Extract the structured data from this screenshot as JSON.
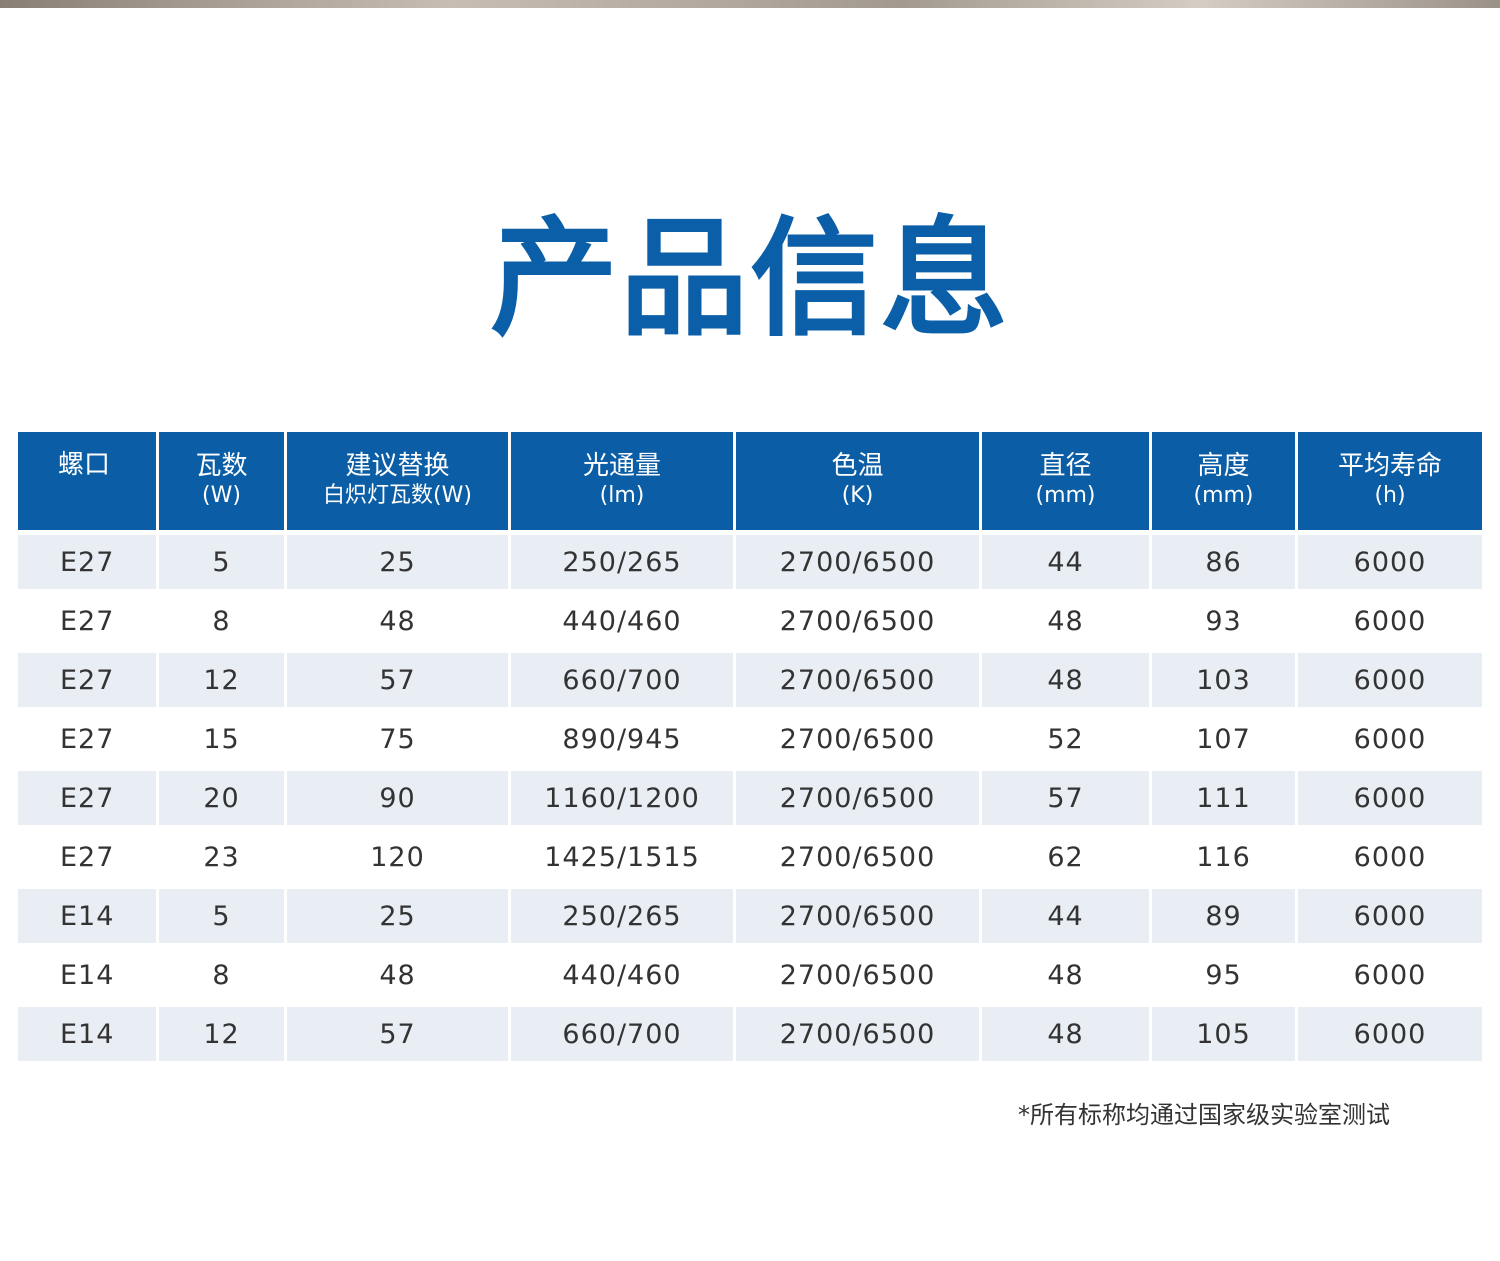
{
  "title": "产品信息",
  "table": {
    "headers": [
      {
        "label": "螺口",
        "unit": ""
      },
      {
        "label": "瓦数",
        "unit": "(W)"
      },
      {
        "label": "建议替换",
        "unit": "白炽灯瓦数(W)"
      },
      {
        "label": "光通量",
        "unit": "(lm)"
      },
      {
        "label": "色温",
        "unit": "(K)"
      },
      {
        "label": "直径",
        "unit": "(mm)"
      },
      {
        "label": "高度",
        "unit": "(mm)"
      },
      {
        "label": "平均寿命",
        "unit": "(h)"
      }
    ],
    "rows": [
      [
        "E27",
        "5",
        "25",
        "250/265",
        "2700/6500",
        "44",
        "86",
        "6000"
      ],
      [
        "E27",
        "8",
        "48",
        "440/460",
        "2700/6500",
        "48",
        "93",
        "6000"
      ],
      [
        "E27",
        "12",
        "57",
        "660/700",
        "2700/6500",
        "48",
        "103",
        "6000"
      ],
      [
        "E27",
        "15",
        "75",
        "890/945",
        "2700/6500",
        "52",
        "107",
        "6000"
      ],
      [
        "E27",
        "20",
        "90",
        "1160/1200",
        "2700/6500",
        "57",
        "111",
        "6000"
      ],
      [
        "E27",
        "23",
        "120",
        "1425/1515",
        "2700/6500",
        "62",
        "116",
        "6000"
      ],
      [
        "E14",
        "5",
        "25",
        "250/265",
        "2700/6500",
        "44",
        "89",
        "6000"
      ],
      [
        "E14",
        "8",
        "48",
        "440/460",
        "2700/6500",
        "48",
        "95",
        "6000"
      ],
      [
        "E14",
        "12",
        "57",
        "660/700",
        "2700/6500",
        "48",
        "105",
        "6000"
      ]
    ]
  },
  "footnote": "*所有标称均通过国家级实验室测试",
  "colors": {
    "title": "#0a5fa8",
    "header_bg": "#0b5ea6",
    "row_alt_bg": "#e9eef5"
  }
}
